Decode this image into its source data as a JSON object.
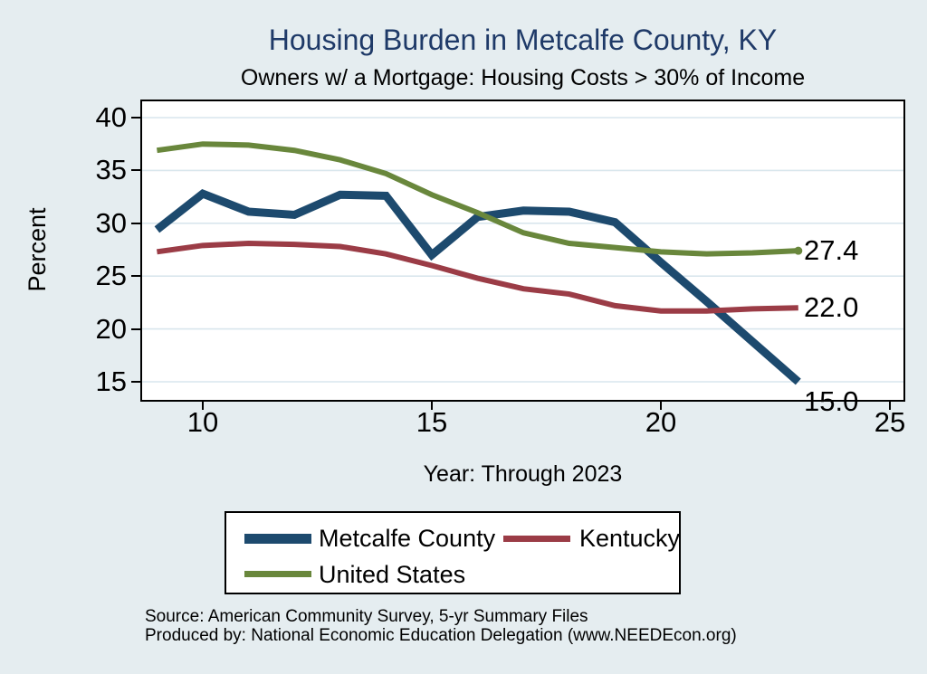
{
  "page": {
    "title": "Housing Burden in Metcalfe County, KY",
    "subtitle": "Owners w/ a Mortgage: Housing Costs > 30% of Income",
    "source_line1": "Source: American Community Survey, 5-yr Summary Files",
    "source_line2": "Produced by: National Economic Education Delegation (www.NEEDEcon.org)"
  },
  "colors": {
    "background": "#e5edf0",
    "plot_background": "#ffffff",
    "gridline": "#d9e6ed",
    "title": "#1f3a68",
    "metcalfe": "#1d4a6e",
    "kentucky": "#9b3c46",
    "united_states": "#69873c"
  },
  "chart_data": {
    "type": "line",
    "title": "Housing Burden in Metcalfe County, KY",
    "subtitle": "Owners w/ a Mortgage: Housing Costs > 30% of Income",
    "xlabel": "Year: Through 2023",
    "ylabel": "Percent",
    "x": [
      9,
      10,
      11,
      12,
      13,
      14,
      15,
      16,
      17,
      18,
      19,
      20,
      21,
      22,
      23
    ],
    "xticks": [
      10,
      15,
      20,
      25
    ],
    "yticks": [
      40,
      35,
      30,
      25,
      20,
      15
    ],
    "xlim": [
      8.7,
      25.3
    ],
    "ylim": [
      13.4,
      41.5
    ],
    "grid": "horizontal",
    "legend_position": "bottom-box",
    "series": [
      {
        "key": "metcalfe",
        "name": "Metcalfe County",
        "values": [
          29.4,
          32.8,
          31.1,
          30.8,
          32.7,
          32.6,
          27.0,
          30.6,
          31.2,
          31.1,
          30.1,
          26.3,
          22.6,
          18.8,
          15.0
        ]
      },
      {
        "key": "kentucky",
        "name": "Kentucky",
        "values": [
          27.3,
          27.9,
          28.1,
          28.0,
          27.8,
          27.1,
          26.0,
          24.8,
          23.8,
          23.3,
          22.2,
          21.7,
          21.7,
          21.9,
          22.0
        ]
      },
      {
        "key": "united_states",
        "name": "United States",
        "values": [
          36.9,
          37.5,
          37.4,
          36.9,
          36.0,
          34.7,
          32.7,
          31.0,
          29.1,
          28.1,
          27.7,
          27.3,
          27.1,
          27.2,
          27.4
        ]
      }
    ],
    "legend": [
      "Metcalfe County",
      "Kentucky",
      "United States"
    ],
    "end_labels": [
      {
        "series": "united_states",
        "text": "27.4"
      },
      {
        "series": "kentucky",
        "text": "22.0"
      },
      {
        "series": "metcalfe",
        "text": "15.0"
      }
    ]
  }
}
